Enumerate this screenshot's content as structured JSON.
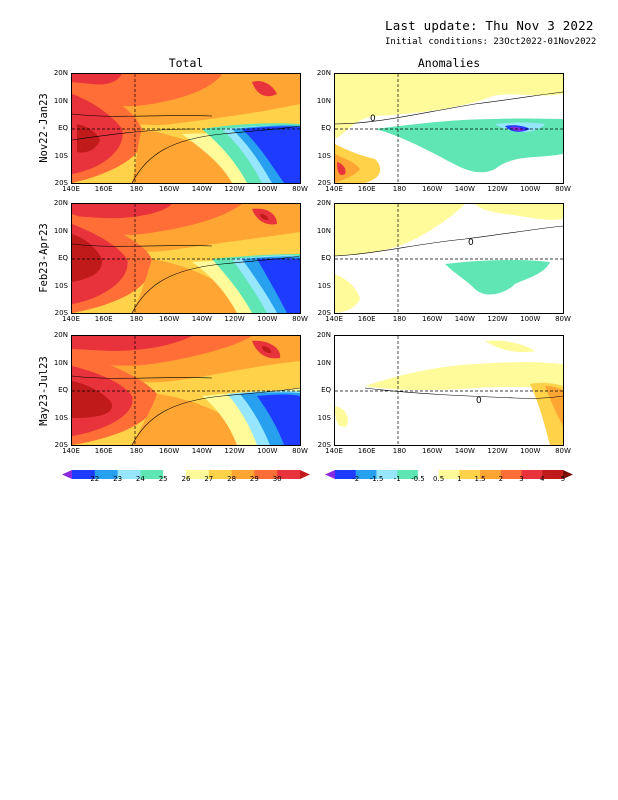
{
  "header": {
    "last_update": "Last update: Thu Nov 3 2022",
    "initial_conditions": "Initial conditions: 23Oct2022-01Nov2022"
  },
  "columns": {
    "total": "Total",
    "anomalies": "Anomalies"
  },
  "rows": [
    {
      "label": "Nov22-Jan23"
    },
    {
      "label": "Feb23-Apr23"
    },
    {
      "label": "May23-Jul23"
    }
  ],
  "axes": {
    "lat_ticks": [
      "20N",
      "10N",
      "EQ",
      "10S",
      "20S"
    ],
    "lon_ticks": [
      "140E",
      "160E",
      "180",
      "160W",
      "140W",
      "120W",
      "100W",
      "80W"
    ]
  },
  "colorbars": {
    "total": {
      "labels": [
        "22",
        "23",
        "24",
        "25",
        "26",
        "27",
        "28",
        "29",
        "30"
      ],
      "colors": [
        "#8a2be2",
        "#1e3cff",
        "#28a0f0",
        "#96e6ff",
        "#5fe6b4",
        "#ffffff",
        "#fffa9a",
        "#ffd24a",
        "#ffa534",
        "#ff6e36",
        "#e8323c",
        "#c01a1a"
      ]
    },
    "anomalies": {
      "labels": [
        "-2",
        "-1.5",
        "-1",
        "-0.5",
        "0.5",
        "1",
        "1.5",
        "2",
        "3",
        "4",
        "5"
      ],
      "colors": [
        "#8a2be2",
        "#1e3cff",
        "#28a0f0",
        "#96e6ff",
        "#5fe6b4",
        "#ffffff",
        "#fffa9a",
        "#ffd24a",
        "#ffa534",
        "#ff6e36",
        "#e8323c",
        "#c01a1a",
        "#7a0a0a"
      ]
    }
  },
  "contour_labels": {
    "zero": "0"
  }
}
